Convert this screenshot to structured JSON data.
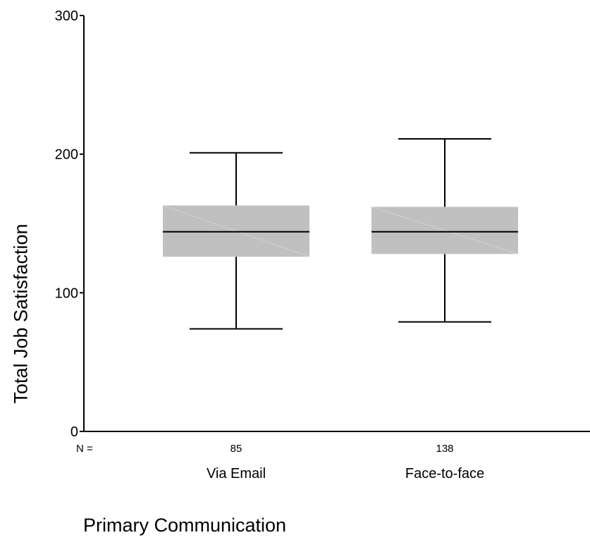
{
  "chart_data": {
    "type": "boxplot",
    "ylabel": "Total Job Satisfaction",
    "xlabel": "Primary Communication",
    "ylim": [
      0,
      300
    ],
    "yticks": [
      "0",
      "100",
      "200",
      "300"
    ],
    "n_label": "N =",
    "box_fill": "#c0c0c0",
    "categories": [
      {
        "label": "Via Email",
        "n": "85",
        "min": 74,
        "q1": 126,
        "median": 144,
        "q3": 163,
        "max": 201
      },
      {
        "label": "Face-to-face",
        "n": "138",
        "min": 79,
        "q1": 128,
        "median": 144,
        "q3": 162,
        "max": 211
      }
    ]
  }
}
